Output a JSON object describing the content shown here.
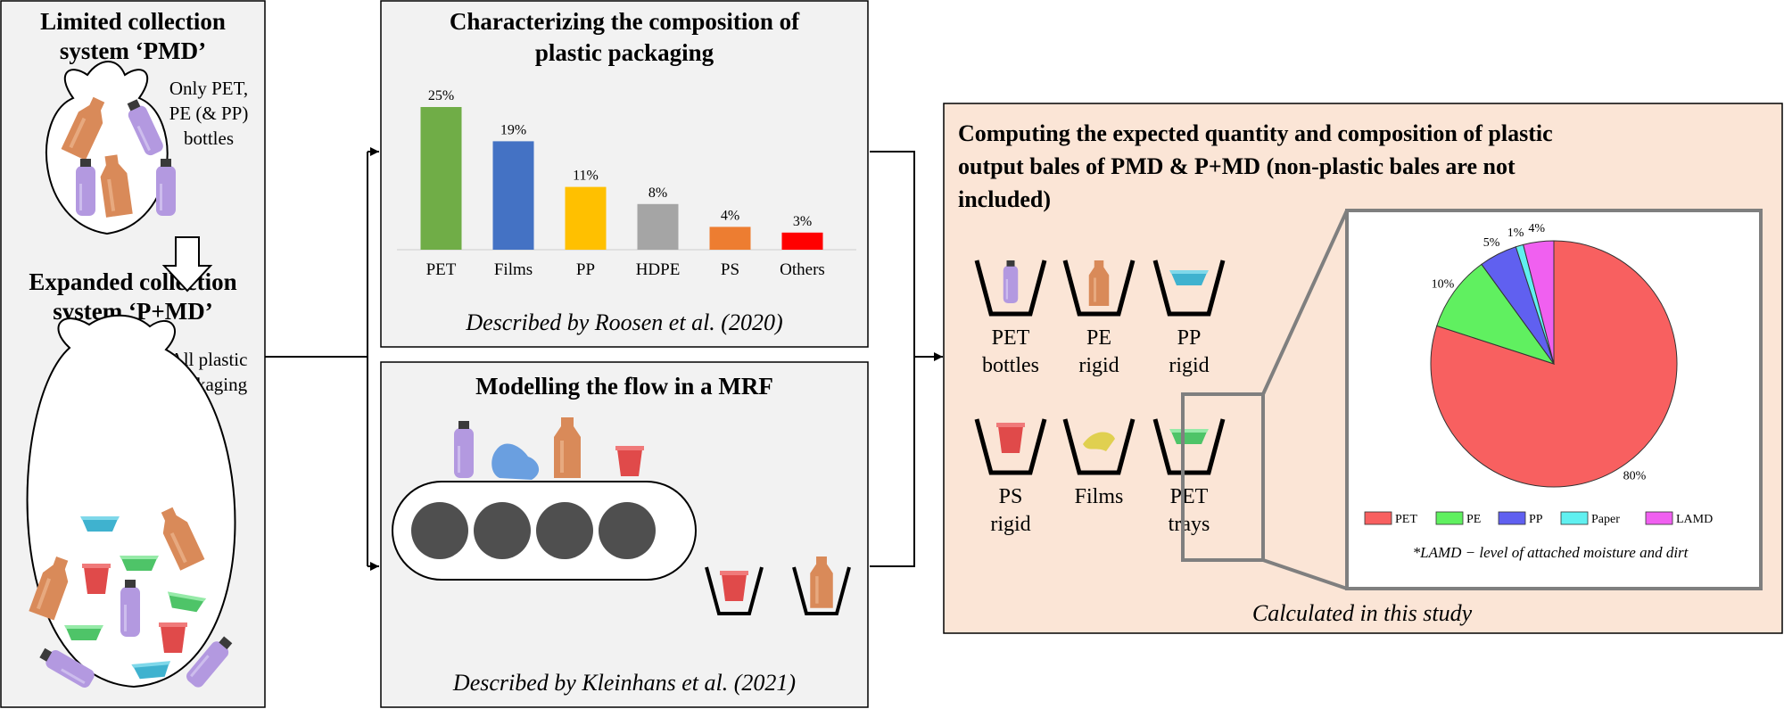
{
  "left_panel": {
    "title_limited": [
      "Limited collection",
      "system ‘PMD’"
    ],
    "limited_note": [
      "Only PET,",
      "PE (& PP)",
      "bottles"
    ],
    "title_expanded": [
      "Expanded collection",
      "system ‘P+MD’"
    ],
    "expanded_note": [
      "All plastic",
      "packaging"
    ]
  },
  "composition_panel": {
    "title": [
      "Characterizing the composition of",
      "plastic packaging"
    ],
    "caption": "Described by Roosen et al. (2020)"
  },
  "chart_data": [
    {
      "type": "bar",
      "title": "",
      "xlabel": "",
      "ylabel": "",
      "categories": [
        "PET",
        "Films",
        "PP",
        "HDPE",
        "PS",
        "Others"
      ],
      "values": [
        25,
        19,
        11,
        8,
        4,
        3
      ],
      "data_labels": [
        "25%",
        "19%",
        "11%",
        "8%",
        "4%",
        "3%"
      ],
      "colors": [
        "#70ad47",
        "#4472c4",
        "#ffc000",
        "#a5a5a5",
        "#ed7d31",
        "#ff0000"
      ],
      "ylim": [
        0,
        25
      ],
      "grid": false,
      "legend": "none"
    },
    {
      "type": "pie",
      "title": "",
      "categories": [
        "PET",
        "PE",
        "PP",
        "Paper",
        "LAMD"
      ],
      "values": [
        80,
        10,
        5,
        1,
        4
      ],
      "data_labels": [
        "80%",
        "10%",
        "5%",
        "1%",
        "4%"
      ],
      "colors": [
        "#f86060",
        "#60f060",
        "#6060f0",
        "#60f0f0",
        "#f060f0"
      ],
      "legend": "bottom"
    }
  ],
  "mrf_panel": {
    "title": "Modelling the flow in a MRF",
    "caption": "Described by Kleinhans et al. (2021)"
  },
  "output_panel": {
    "title": [
      "Computing the expected quantity and composition of plastic",
      "output bales of PMD & P+MD (non-plastic bales are not",
      "included)"
    ],
    "bales": [
      {
        "label": [
          "PET",
          "bottles"
        ],
        "icon": "bottle-purple-icon"
      },
      {
        "label": [
          "PE",
          "rigid"
        ],
        "icon": "bottle-orange-icon"
      },
      {
        "label": [
          "PP",
          "rigid"
        ],
        "icon": "tray-cyan-icon"
      },
      {
        "label": [
          "PS",
          "rigid"
        ],
        "icon": "cup-red-icon"
      },
      {
        "label": [
          "Films"
        ],
        "icon": "film-yellow-icon"
      },
      {
        "label": [
          "PET",
          "trays"
        ],
        "icon": "tray-green-icon"
      }
    ],
    "footnote": "*LAMD − level of attached moisture and dirt",
    "caption": "Calculated in this study"
  },
  "colors": {
    "panel_gray": "#f2f2f2",
    "panel_peach": "#fbe5d6",
    "border": "#000000",
    "zoom_gray": "#7f7f7f",
    "bottle_purple": "#b399e0",
    "bottle_orange": "#d98a59",
    "tray_cyan": "#5bc8e0",
    "tray_green": "#74e08a",
    "cup_red": "#e04a4a",
    "film_yellow": "#e0d050",
    "film_blue": "#6a9fe0",
    "roller_gray": "#4f4f4f"
  }
}
